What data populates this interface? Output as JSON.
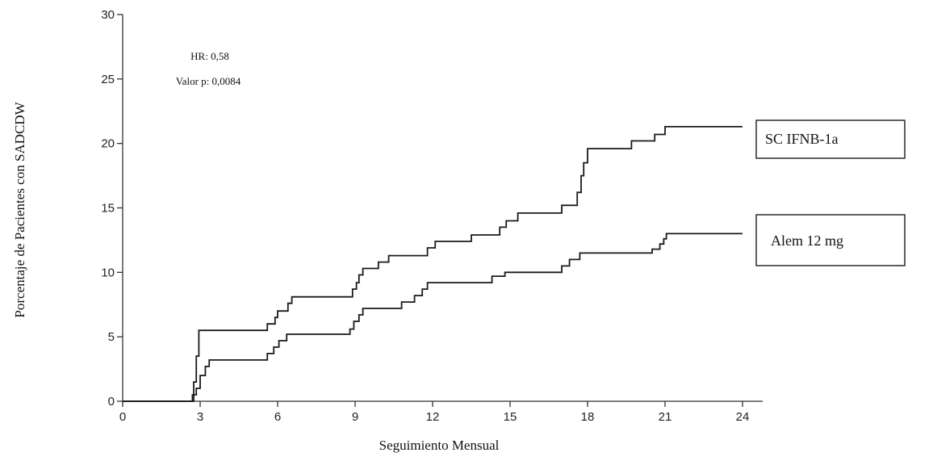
{
  "chart_data": {
    "type": "line",
    "step": true,
    "xlabel": "Seguimiento Mensual",
    "ylabel": "Porcentaje de Pacientes con SADCDW",
    "xlim": [
      0,
      24.5
    ],
    "ylim": [
      0,
      30
    ],
    "xticks": [
      0,
      3,
      6,
      9,
      12,
      15,
      18,
      21,
      24
    ],
    "yticks": [
      0,
      5,
      10,
      15,
      20,
      25,
      30
    ],
    "grid": false,
    "annotations": [
      "HR: 0,58",
      "Valor p: 0,0084"
    ],
    "series": [
      {
        "name": "SC IFNB-1a",
        "color": "#1a1a1a",
        "points": [
          [
            0,
            0
          ],
          [
            2.75,
            0
          ],
          [
            2.75,
            1.5
          ],
          [
            2.85,
            1.5
          ],
          [
            2.85,
            3.5
          ],
          [
            2.95,
            3.5
          ],
          [
            2.95,
            5.5
          ],
          [
            5.6,
            5.5
          ],
          [
            5.6,
            6.0
          ],
          [
            5.9,
            6.0
          ],
          [
            5.9,
            6.5
          ],
          [
            6.0,
            6.5
          ],
          [
            6.0,
            7.0
          ],
          [
            6.4,
            7.0
          ],
          [
            6.4,
            7.6
          ],
          [
            6.55,
            7.6
          ],
          [
            6.55,
            8.1
          ],
          [
            8.9,
            8.1
          ],
          [
            8.9,
            8.7
          ],
          [
            9.05,
            8.7
          ],
          [
            9.05,
            9.2
          ],
          [
            9.15,
            9.2
          ],
          [
            9.15,
            9.8
          ],
          [
            9.3,
            9.8
          ],
          [
            9.3,
            10.3
          ],
          [
            9.9,
            10.3
          ],
          [
            9.9,
            10.8
          ],
          [
            10.3,
            10.8
          ],
          [
            10.3,
            11.3
          ],
          [
            11.8,
            11.3
          ],
          [
            11.8,
            11.9
          ],
          [
            12.1,
            11.9
          ],
          [
            12.1,
            12.4
          ],
          [
            13.5,
            12.4
          ],
          [
            13.5,
            12.9
          ],
          [
            14.6,
            12.9
          ],
          [
            14.6,
            13.5
          ],
          [
            14.85,
            13.5
          ],
          [
            14.85,
            14.0
          ],
          [
            15.3,
            14.0
          ],
          [
            15.3,
            14.6
          ],
          [
            17.0,
            14.6
          ],
          [
            17.0,
            15.2
          ],
          [
            17.6,
            15.2
          ],
          [
            17.6,
            16.2
          ],
          [
            17.75,
            16.2
          ],
          [
            17.75,
            17.5
          ],
          [
            17.85,
            17.5
          ],
          [
            17.85,
            18.5
          ],
          [
            18.0,
            18.5
          ],
          [
            18.0,
            19.6
          ],
          [
            19.7,
            19.6
          ],
          [
            19.7,
            20.2
          ],
          [
            20.6,
            20.2
          ],
          [
            20.6,
            20.7
          ],
          [
            21.0,
            20.7
          ],
          [
            21.0,
            21.3
          ],
          [
            24.0,
            21.3
          ]
        ]
      },
      {
        "name": "Alem 12 mg",
        "color": "#1a1a1a",
        "points": [
          [
            0,
            0
          ],
          [
            2.7,
            0
          ],
          [
            2.7,
            0.5
          ],
          [
            2.85,
            0.5
          ],
          [
            2.85,
            1.0
          ],
          [
            3.0,
            1.0
          ],
          [
            3.0,
            2.0
          ],
          [
            3.2,
            2.0
          ],
          [
            3.2,
            2.7
          ],
          [
            3.35,
            2.7
          ],
          [
            3.35,
            3.2
          ],
          [
            5.6,
            3.2
          ],
          [
            5.6,
            3.7
          ],
          [
            5.85,
            3.7
          ],
          [
            5.85,
            4.2
          ],
          [
            6.05,
            4.2
          ],
          [
            6.05,
            4.7
          ],
          [
            6.35,
            4.7
          ],
          [
            6.35,
            5.2
          ],
          [
            8.8,
            5.2
          ],
          [
            8.8,
            5.6
          ],
          [
            8.95,
            5.6
          ],
          [
            8.95,
            6.2
          ],
          [
            9.15,
            6.2
          ],
          [
            9.15,
            6.7
          ],
          [
            9.3,
            6.7
          ],
          [
            9.3,
            7.2
          ],
          [
            10.8,
            7.2
          ],
          [
            10.8,
            7.7
          ],
          [
            11.3,
            7.7
          ],
          [
            11.3,
            8.2
          ],
          [
            11.6,
            8.2
          ],
          [
            11.6,
            8.7
          ],
          [
            11.8,
            8.7
          ],
          [
            11.8,
            9.2
          ],
          [
            14.3,
            9.2
          ],
          [
            14.3,
            9.7
          ],
          [
            14.8,
            9.7
          ],
          [
            14.8,
            10.0
          ],
          [
            17.0,
            10.0
          ],
          [
            17.0,
            10.5
          ],
          [
            17.3,
            10.5
          ],
          [
            17.3,
            11.0
          ],
          [
            17.7,
            11.0
          ],
          [
            17.7,
            11.5
          ],
          [
            20.5,
            11.5
          ],
          [
            20.5,
            11.8
          ],
          [
            20.8,
            11.8
          ],
          [
            20.8,
            12.2
          ],
          [
            20.95,
            12.2
          ],
          [
            20.95,
            12.6
          ],
          [
            21.05,
            12.6
          ],
          [
            21.05,
            13.0
          ],
          [
            24.0,
            13.0
          ]
        ]
      }
    ]
  }
}
